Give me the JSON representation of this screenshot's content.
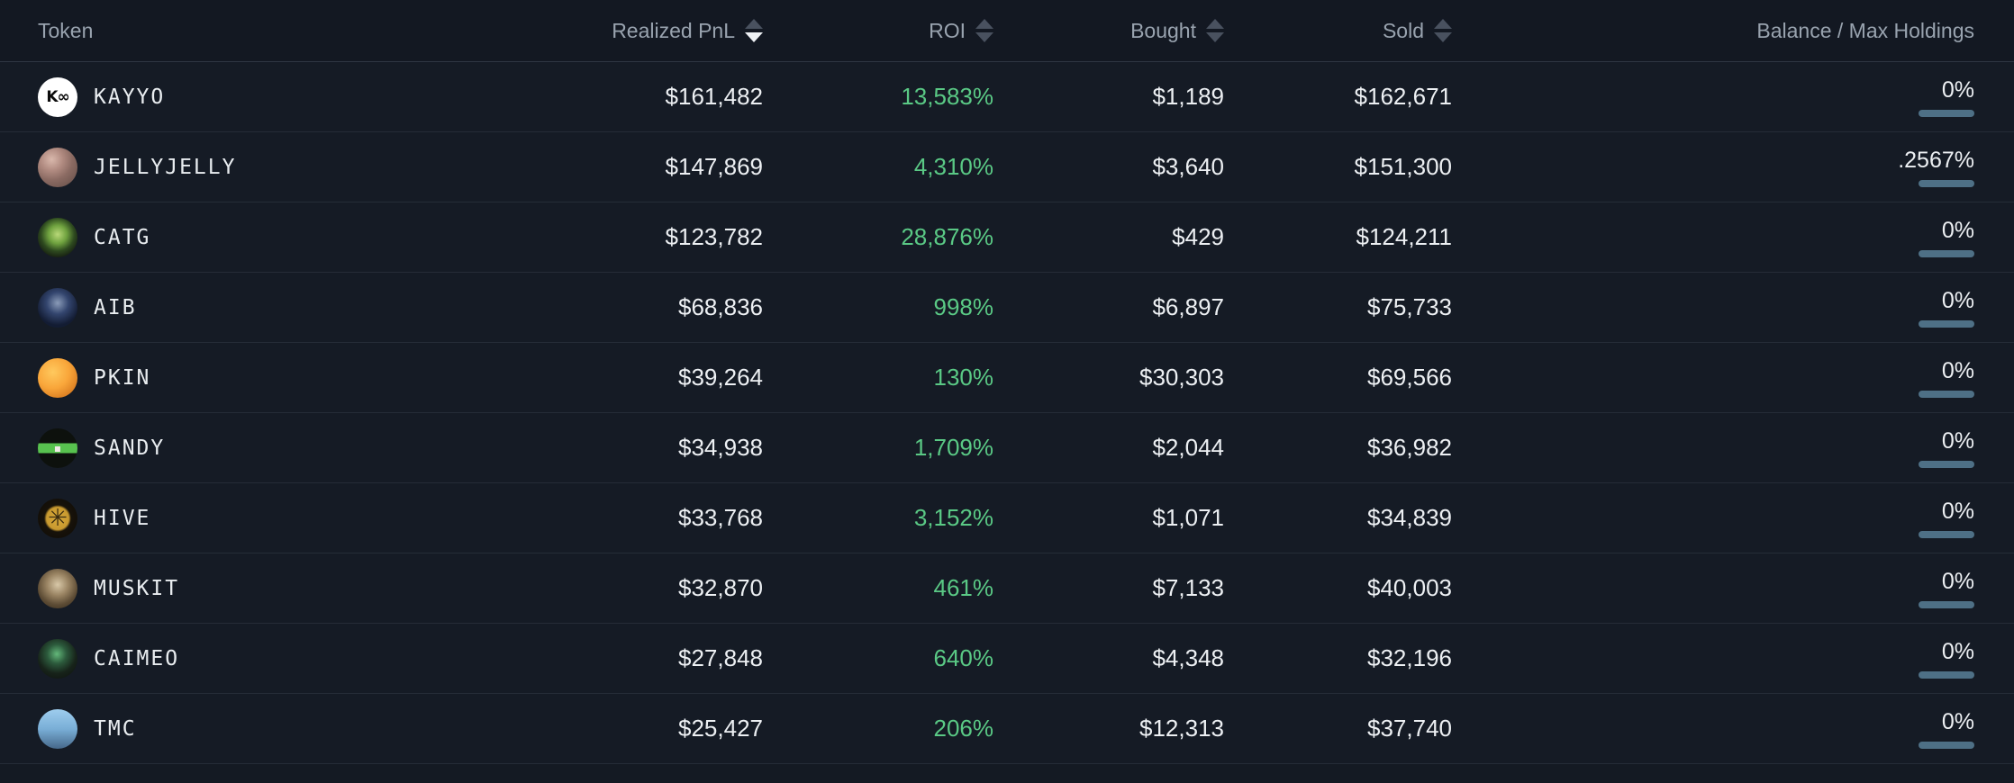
{
  "colors": {
    "roi_positive": "#5ac985",
    "balance_bar": "#4e7086",
    "background": "#131922",
    "row_background": "#151b25",
    "header_text": "#99a3af",
    "value_text": "#edf0f3"
  },
  "table": {
    "columns": [
      {
        "label": "Token",
        "sortable": false,
        "sort": null
      },
      {
        "label": "Realized PnL",
        "sortable": true,
        "sort": "desc"
      },
      {
        "label": "ROI",
        "sortable": true,
        "sort": null
      },
      {
        "label": "Bought",
        "sortable": true,
        "sort": null
      },
      {
        "label": "Sold",
        "sortable": true,
        "sort": null
      },
      {
        "label": "Balance / Max Holdings",
        "sortable": false,
        "sort": null
      }
    ],
    "rows": [
      {
        "token": "KAYYO",
        "icon": {
          "name": "kayyo-token-icon",
          "glyph": "K∞",
          "style": "background:#ffffff;color:#0c0c0c;font-weight:bold;font-size:17px;letter-spacing:-1px"
        },
        "realized_pnl": "$161,482",
        "roi": "13,583%",
        "bought": "$1,189",
        "sold": "$162,671",
        "balance": "0%"
      },
      {
        "token": "JELLYJELLY",
        "icon": {
          "name": "jellyjelly-token-icon",
          "glyph": "",
          "style": "background:radial-gradient(circle at 35% 30%, #d9b8ac 0%, #b08a80 30%, #8a6a62 55%, #5f4a44 100%)"
        },
        "realized_pnl": "$147,869",
        "roi": "4,310%",
        "bought": "$3,640",
        "sold": "$151,300",
        "balance": ".2567%"
      },
      {
        "token": "CATG",
        "icon": {
          "name": "catg-token-icon",
          "glyph": "",
          "style": "background:radial-gradient(circle at 50% 42%, #b8d878 0%, #6fa23f 30%, #2e4a1f 55%, #141a10 80%)"
        },
        "realized_pnl": "$123,782",
        "roi": "28,876%",
        "bought": "$429",
        "sold": "$124,211",
        "balance": "0%"
      },
      {
        "token": "AIB",
        "icon": {
          "name": "aib-token-icon",
          "glyph": "",
          "style": "background:radial-gradient(circle at 50% 38%, #8a9bb8 0%, #33456e 35%, #131c33 70%)"
        },
        "realized_pnl": "$68,836",
        "roi": "998%",
        "bought": "$6,897",
        "sold": "$75,733",
        "balance": "0%"
      },
      {
        "token": "PKIN",
        "icon": {
          "name": "pkin-token-icon",
          "glyph": "",
          "style": "background:radial-gradient(circle at 38% 35%, #ffc95e 0%, #f9a63a 45%, #d97c20 80%, #b96516 100%)"
        },
        "realized_pnl": "$39,264",
        "roi": "130%",
        "bought": "$30,303",
        "sold": "$69,566",
        "balance": "0%"
      },
      {
        "token": "SANDY",
        "icon": {
          "name": "sandy-token-icon",
          "glyph": "▪",
          "style": "background:linear-gradient(180deg,#0d110d 0%,#0d110d 38%,#58c24f 38%,#58c24f 62%,#0d110d 62%,#0d110d 100%);color:#f2e9e9;font-size:12px"
        },
        "realized_pnl": "$34,938",
        "roi": "1,709%",
        "bought": "$2,044",
        "sold": "$36,982",
        "balance": "0%"
      },
      {
        "token": "HIVE",
        "icon": {
          "name": "hive-token-icon",
          "glyph": "✳",
          "style": "background:radial-gradient(circle at 50% 50%, #d8a93a 0%, #c8992f 40%, #17120a 48%, #0e0b06 100%);color:#3a2c10;font-size:26px"
        },
        "realized_pnl": "$33,768",
        "roi": "3,152%",
        "bought": "$1,071",
        "sold": "$34,839",
        "balance": "0%"
      },
      {
        "token": "MUSKIT",
        "icon": {
          "name": "muskit-token-icon",
          "glyph": "",
          "style": "background:radial-gradient(circle at 50% 40%, #d8c8a8 0%, #9a8463 35%, #5d4c35 65%, #32281a 100%)"
        },
        "realized_pnl": "$32,870",
        "roi": "461%",
        "bought": "$7,133",
        "sold": "$40,003",
        "balance": "0%"
      },
      {
        "token": "CAIMEO",
        "icon": {
          "name": "caimeo-token-icon",
          "glyph": "",
          "style": "background:radial-gradient(circle at 48% 38%, #63b87a 0%, #2c5a3c 30%, #17231a 60%, #0d0f0d 100%)"
        },
        "realized_pnl": "$27,848",
        "roi": "640%",
        "bought": "$4,348",
        "sold": "$32,196",
        "balance": "0%"
      },
      {
        "token": "TMC",
        "icon": {
          "name": "tmc-token-icon",
          "glyph": "",
          "style": "background:linear-gradient(180deg,#9ecdee 0%,#79aed6 50%,#46688a 100%)"
        },
        "realized_pnl": "$25,427",
        "roi": "206%",
        "bought": "$12,313",
        "sold": "$37,740",
        "balance": "0%"
      }
    ]
  }
}
